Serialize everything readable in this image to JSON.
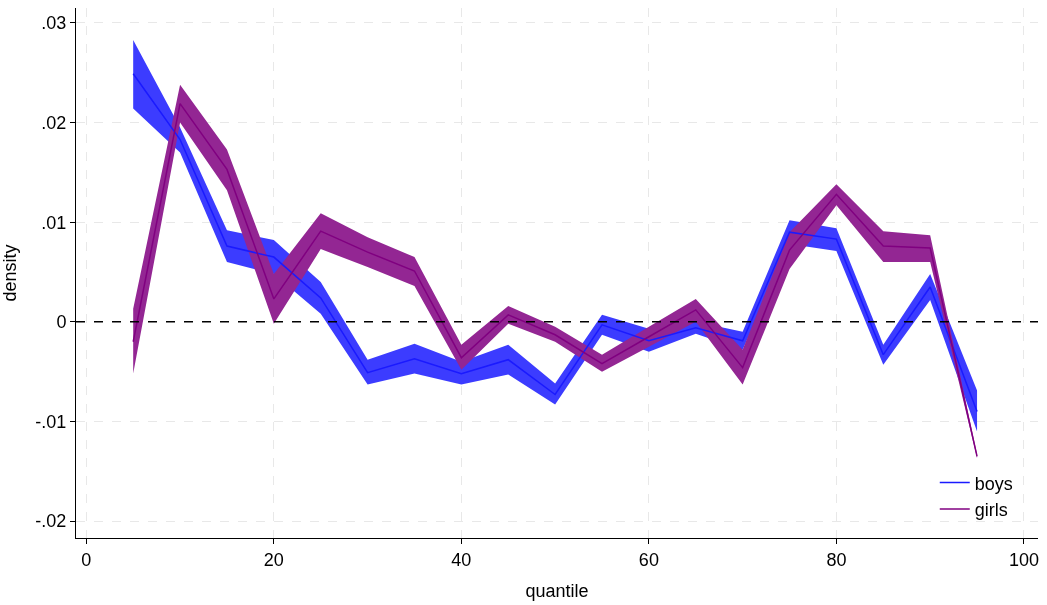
{
  "chart_data": {
    "type": "line",
    "xlabel": "quantile",
    "ylabel": "density",
    "x": [
      5,
      10,
      15,
      20,
      25,
      30,
      35,
      40,
      45,
      50,
      55,
      60,
      65,
      70,
      75,
      80,
      85,
      90,
      95
    ],
    "series": [
      {
        "name": "boys",
        "color": "#1a1aff",
        "values": [
          0.0249,
          0.0183,
          0.0076,
          0.0065,
          0.0024,
          -0.0051,
          -0.0037,
          -0.0052,
          -0.0038,
          -0.0073,
          -0.0003,
          -0.0019,
          -0.0006,
          -0.0019,
          0.009,
          0.0083,
          -0.0033,
          0.0035,
          -0.009
        ],
        "upper": [
          0.0283,
          0.0195,
          0.0092,
          0.0082,
          0.004,
          -0.0038,
          -0.0022,
          -0.004,
          -0.0023,
          -0.0062,
          0.0007,
          -0.0007,
          0.0,
          -0.001,
          0.0102,
          0.0094,
          -0.0023,
          0.0048,
          -0.0069
        ],
        "lower": [
          0.0214,
          0.017,
          0.006,
          0.0048,
          0.0008,
          -0.0063,
          -0.0052,
          -0.0063,
          -0.0053,
          -0.0083,
          -0.0013,
          -0.003,
          -0.0012,
          -0.0028,
          0.0078,
          0.0071,
          -0.0043,
          0.0022,
          -0.011
        ]
      },
      {
        "name": "girls",
        "color": "#800080",
        "values": [
          -0.002,
          0.0219,
          0.0153,
          0.0023,
          0.0091,
          0.007,
          0.0051,
          -0.0036,
          0.0007,
          -0.0013,
          -0.0042,
          -0.0015,
          0.0012,
          -0.0046,
          0.0072,
          0.0128,
          0.0076,
          0.0074,
          -0.0135
        ],
        "upper": [
          0.0013,
          0.0238,
          0.0173,
          0.0048,
          0.0109,
          0.0085,
          0.0065,
          -0.0023,
          0.0016,
          -0.0005,
          -0.0033,
          -0.0005,
          0.0023,
          -0.0028,
          0.009,
          0.0138,
          0.0091,
          0.0087,
          -0.0133
        ],
        "lower": [
          -0.0052,
          0.02,
          0.0132,
          -0.0002,
          0.0073,
          0.0055,
          0.0036,
          -0.0048,
          -0.0002,
          -0.002,
          -0.005,
          -0.0025,
          0.0,
          -0.0063,
          0.0053,
          0.0117,
          0.006,
          0.006,
          -0.0137
        ]
      }
    ],
    "xlim": [
      -1.1,
      101.5
    ],
    "ylim": [
      -0.0217,
      0.0315
    ],
    "xticks": [
      0,
      20,
      40,
      60,
      80,
      100
    ],
    "yticks": [
      {
        "value": -0.02,
        "label": "-.02"
      },
      {
        "value": -0.01,
        "label": "-.01"
      },
      {
        "value": 0,
        "label": "0"
      },
      {
        "value": 0.01,
        "label": ".01"
      },
      {
        "value": 0.02,
        "label": ".02"
      },
      {
        "value": 0.03,
        "label": ".03"
      }
    ],
    "ref_lines": [
      {
        "axis": "y",
        "value": 0,
        "color": "#000000",
        "line_style": "dashed"
      }
    ],
    "grid": true,
    "legend": "bottom right"
  }
}
